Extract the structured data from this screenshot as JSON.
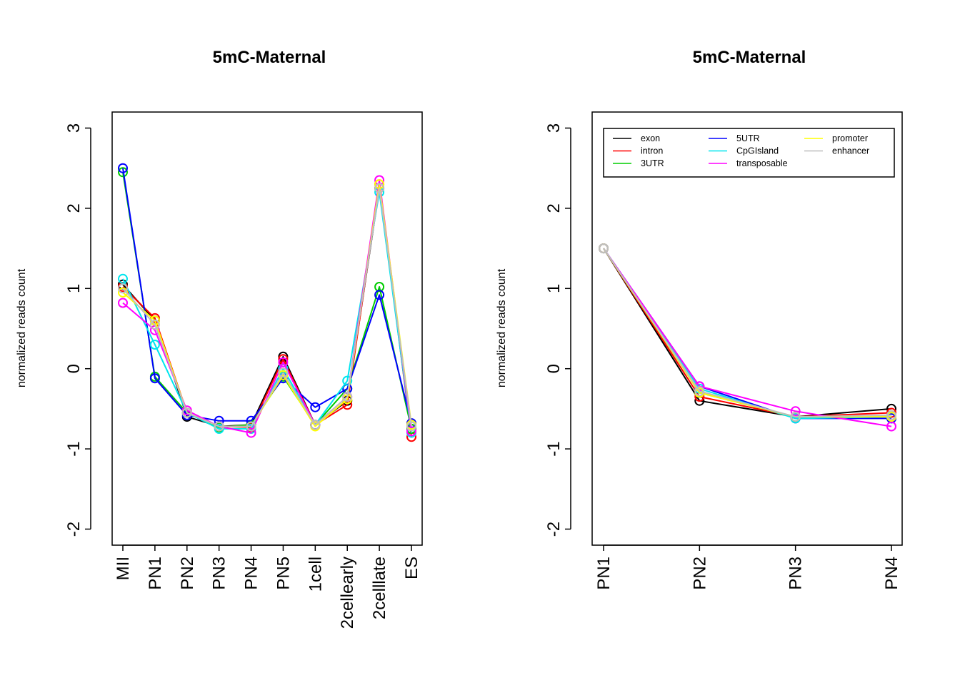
{
  "chart_data": [
    {
      "type": "line",
      "title": "5mC-Maternal",
      "xlabel": "",
      "ylabel": "normalized reads count",
      "ylim": [
        -2.2,
        3.2
      ],
      "yticks": [
        "3",
        "2",
        "1",
        "0",
        "-1",
        "-2"
      ],
      "ytick_values": [
        3,
        2,
        1,
        0,
        -1,
        -2
      ],
      "categories": [
        "MII",
        "PN1",
        "PN2",
        "PN3",
        "PN4",
        "PN5",
        "1cell",
        "2cellearly",
        "2celllate",
        "ES"
      ],
      "legend": false,
      "markers": "open-circle",
      "series": [
        {
          "color": "#000000",
          "values": [
            1.05,
            0.6,
            -0.6,
            -0.72,
            -0.7,
            0.15,
            -0.7,
            -0.4,
            2.25,
            -0.75
          ]
        },
        {
          "color": "#ff0000",
          "values": [
            1.02,
            0.63,
            -0.55,
            -0.72,
            -0.73,
            0.12,
            -0.7,
            -0.45,
            2.3,
            -0.85
          ]
        },
        {
          "color": "#00cd00",
          "values": [
            2.45,
            -0.1,
            -0.55,
            -0.73,
            -0.7,
            -0.1,
            -0.7,
            -0.25,
            1.02,
            -0.75
          ]
        },
        {
          "color": "#0000ff",
          "values": [
            2.5,
            -0.12,
            -0.58,
            -0.65,
            -0.65,
            -0.12,
            -0.48,
            -0.25,
            0.92,
            -0.68
          ]
        },
        {
          "color": "#00e5ee",
          "values": [
            1.12,
            0.3,
            -0.55,
            -0.75,
            -0.75,
            0.0,
            -0.7,
            -0.15,
            2.2,
            -0.8
          ]
        },
        {
          "color": "#ff00ff",
          "values": [
            0.82,
            0.48,
            -0.52,
            -0.72,
            -0.8,
            0.08,
            -0.7,
            -0.35,
            2.35,
            -0.78
          ]
        },
        {
          "color": "#ffff00",
          "values": [
            0.95,
            0.6,
            -0.55,
            -0.72,
            -0.72,
            -0.08,
            -0.72,
            -0.38,
            2.3,
            -0.7
          ]
        },
        {
          "color": "#bebebe",
          "values": [
            1.0,
            0.55,
            -0.55,
            -0.72,
            -0.72,
            -0.05,
            -0.7,
            -0.35,
            2.25,
            -0.72
          ]
        }
      ]
    },
    {
      "type": "line",
      "title": "5mC-Maternal",
      "xlabel": "",
      "ylabel": "normalized reads count",
      "ylim": [
        -2.2,
        3.2
      ],
      "yticks": [
        "3",
        "2",
        "1",
        "0",
        "-1",
        "-2"
      ],
      "ytick_values": [
        3,
        2,
        1,
        0,
        -1,
        -2
      ],
      "categories": [
        "PN1",
        "PN2",
        "PN3",
        "PN4"
      ],
      "legend": true,
      "legend_position": "top",
      "markers": "open-circle",
      "series": [
        {
          "name": "exon",
          "color": "#000000",
          "values": [
            1.5,
            -0.4,
            -0.6,
            -0.5
          ]
        },
        {
          "name": "intron",
          "color": "#ff0000",
          "values": [
            1.5,
            -0.35,
            -0.6,
            -0.55
          ]
        },
        {
          "name": "3UTR",
          "color": "#00cd00",
          "values": [
            1.5,
            -0.3,
            -0.6,
            -0.6
          ]
        },
        {
          "name": "5UTR",
          "color": "#0000ff",
          "values": [
            1.5,
            -0.22,
            -0.62,
            -0.62
          ]
        },
        {
          "name": "CpGIsland",
          "color": "#00e5ee",
          "values": [
            1.5,
            -0.25,
            -0.62,
            -0.6
          ]
        },
        {
          "name": "transposable",
          "color": "#ff00ff",
          "values": [
            1.5,
            -0.22,
            -0.53,
            -0.72
          ]
        },
        {
          "name": "promoter",
          "color": "#ffff00",
          "values": [
            1.5,
            -0.3,
            -0.6,
            -0.6
          ]
        },
        {
          "name": "enhancer",
          "color": "#bebebe",
          "values": [
            1.5,
            -0.28,
            -0.6,
            -0.58
          ]
        }
      ]
    }
  ]
}
